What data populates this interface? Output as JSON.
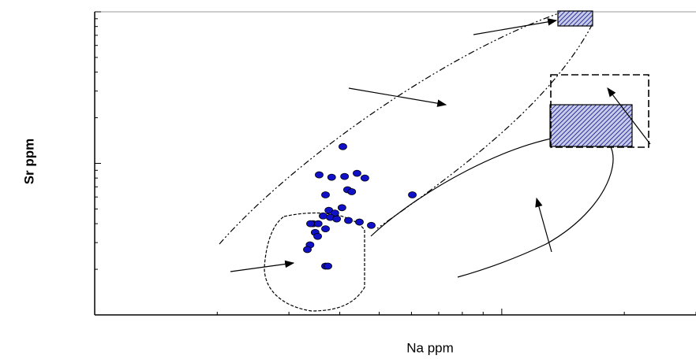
{
  "chart_data": {
    "type": "scatter",
    "x_label": "Na ppm",
    "y_label": "Sr  ppm",
    "log_x": true,
    "log_y": true,
    "xlim": [
      100,
      3000
    ],
    "ylim": [
      10,
      1000
    ],
    "xticks": [
      200,
      300,
      400,
      500,
      600,
      700,
      800,
      900,
      1000,
      2000,
      3000
    ],
    "yticks": [
      20,
      30,
      40,
      50,
      60,
      70,
      80,
      90,
      100,
      200,
      300,
      400,
      500,
      600,
      700,
      800,
      900,
      1000
    ],
    "color": "#1010c8",
    "x": [
      407,
      356,
      382,
      411,
      441,
      461,
      418,
      428,
      369,
      603,
      376,
      389,
      405,
      364,
      379,
      393,
      420,
      447,
      478,
      344,
      354,
      339,
      369,
      348,
      353,
      338,
      333,
      369,
      374
    ],
    "values": [
      129,
      84,
      81,
      82,
      86,
      80,
      67,
      65,
      62,
      62,
      49,
      47,
      51,
      45,
      44,
      43,
      42,
      41,
      39,
      40,
      40,
      40,
      37,
      35,
      33,
      29,
      27,
      21,
      21
    ]
  }
}
